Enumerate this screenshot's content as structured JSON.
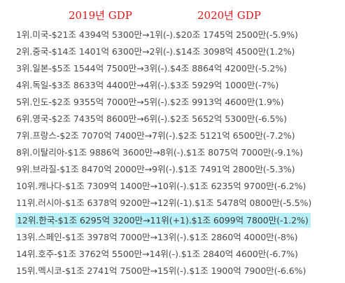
{
  "header": {
    "year_2019": "2019년 GDP",
    "year_2020": "2020년 GDP"
  },
  "highlight_color": "#b7f0f8",
  "title_color": "#e8151b",
  "rows": [
    "1위.미국-$21조 4394억 5300만→1위(-).$20조 1745억 2500만(-5.9%)",
    "2위.중국-$14조 1401억 6300만→2위(-).$14조 3098억 4500만(1.2%)",
    "3위.일본-$5조 1544억 7500만→3위(-).$4조 8864억 4200만(-5.2%)",
    "4위.독일-$3조 8633억 4400만→4위(-).$3조 5929억 1000만(-7%)",
    "5위.인도-$2조 9355억 7000만→5위(-).$2조 9913억 4600만(1.9%)",
    "6위.영국-$2조 7435억 8600만→6위(-).$2조 5652억 5300만(-6.5%)",
    "7위.프랑스-$2조 7070억 7400만→7위(-).$2조 5121억 6500만(-7.2%)",
    "8위.이탈리아-$1조 9886억 3600만→8위(-).$1조 8075억 7000만(-9.1%)",
    "9위.브라질-$1조 8470억 2000만→9위(-).$1조  7491억 2800만(-5.3%)",
    "10위.캐나다-$1조 7309억 1400만→10위(-).$1조 6235억 9700만(-6.2%)",
    "11위.러시아-$1조 6378억 9200만→12위(-1).$1조 5478억 0800만(-5.5%)",
    "12위.한국-$1조 6295억 3200만→11위(+1).$1조 6099억 7800만(-1.2%)",
    "13위.스페인-$1조 3978억 7000만→13위(-).$1조 2860억 4000만(-8%)",
    "14위.호주-$1조 3762억 5500만→14위(-).$1조 2840억 4600만(-6.7%)",
    "15위.멕시코-$1조 2741억 7500만→15위(-).$1조 1900억 7900만(-6.6%)"
  ]
}
